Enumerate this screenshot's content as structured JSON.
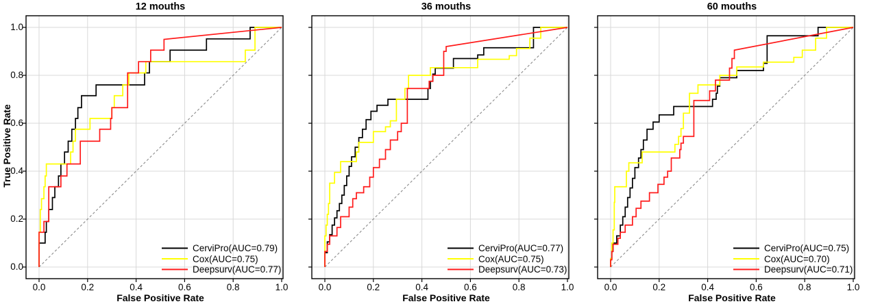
{
  "figure": {
    "background": "#ffffff"
  },
  "colors": {
    "cervipro": "#000000",
    "cox": "#ffff00",
    "deepsurv": "#ff1a1a",
    "diagonal": "#8a8a8a",
    "grid": "#d8d8d8",
    "border": "#000000",
    "tick": "#000000"
  },
  "axis": {
    "x_label": "False Positive Rate",
    "y_label": "True Positive Rate",
    "x_tick_labels": [
      "0.0",
      "0.2",
      "0.4",
      "0.6",
      "0.8",
      "1.0"
    ],
    "y_tick_labels": [
      "1.0",
      "0.8",
      "0.6",
      "0.4",
      "0.2",
      "0.0"
    ]
  },
  "chart_data": [
    {
      "type": "line",
      "subtype": "roc-step-curves",
      "title": "12 mouths",
      "xlabel": "False Positive Rate",
      "ylabel": "True Positive Rate",
      "xlim": [
        0,
        1
      ],
      "ylim": [
        0,
        1
      ],
      "ticks": [
        0,
        0.2,
        0.4,
        0.6,
        0.8,
        1.0
      ],
      "grid": true,
      "diagonal_reference": true,
      "legend_position": "bottom-right",
      "series": [
        {
          "name": "CerviPro",
          "label": "CerviPro(AUC=0.79)",
          "auc": 0.79,
          "color": "#000000",
          "points": [
            [
              0,
              0.1
            ],
            [
              0.025,
              0.145
            ],
            [
              0.03,
              0.19
            ],
            [
              0.04,
              0.24
            ],
            [
              0.055,
              0.29
            ],
            [
              0.065,
              0.335
            ],
            [
              0.08,
              0.38
            ],
            [
              0.09,
              0.43
            ],
            [
              0.105,
              0.48
            ],
            [
              0.12,
              0.525
            ],
            [
              0.135,
              0.575
            ],
            [
              0.15,
              0.62
            ],
            [
              0.16,
              0.665
            ],
            [
              0.175,
              0.715
            ],
            [
              0.235,
              0.76
            ],
            [
              0.435,
              0.81
            ],
            [
              0.455,
              0.857
            ],
            [
              0.54,
              0.905
            ],
            [
              0.69,
              0.952
            ],
            [
              0.87,
              1
            ],
            [
              1,
              1
            ]
          ]
        },
        {
          "name": "Cox",
          "label": "Cox(AUC=0.75)",
          "auc": 0.75,
          "color": "#ffff00",
          "points": [
            [
              0,
              0.145
            ],
            [
              0.005,
              0.24
            ],
            [
              0.01,
              0.285
            ],
            [
              0.02,
              0.335
            ],
            [
              0.025,
              0.38
            ],
            [
              0.03,
              0.43
            ],
            [
              0.13,
              0.48
            ],
            [
              0.14,
              0.525
            ],
            [
              0.15,
              0.575
            ],
            [
              0.21,
              0.62
            ],
            [
              0.3,
              0.665
            ],
            [
              0.31,
              0.715
            ],
            [
              0.345,
              0.76
            ],
            [
              0.37,
              0.81
            ],
            [
              0.44,
              0.857
            ],
            [
              0.85,
              0.905
            ],
            [
              0.89,
              1
            ],
            [
              1,
              1
            ]
          ]
        },
        {
          "name": "Deepsurv",
          "label": "Deepsurv(AUC=0.77)",
          "auc": 0.77,
          "color": "#ff1a1a",
          "points": [
            [
              0,
              0.145
            ],
            [
              0.02,
              0.19
            ],
            [
              0.04,
              0.335
            ],
            [
              0.09,
              0.38
            ],
            [
              0.115,
              0.43
            ],
            [
              0.17,
              0.525
            ],
            [
              0.25,
              0.575
            ],
            [
              0.295,
              0.62
            ],
            [
              0.3,
              0.665
            ],
            [
              0.365,
              0.81
            ],
            [
              0.41,
              0.857
            ],
            [
              0.46,
              0.905
            ],
            [
              0.515,
              0.95
            ]
          ],
          "tail": [
            [
              1,
              1
            ]
          ]
        }
      ]
    },
    {
      "type": "line",
      "subtype": "roc-step-curves",
      "title": "36 mouths",
      "xlabel": "False Positive Rate",
      "ylabel": "True Positive Rate",
      "xlim": [
        0,
        1
      ],
      "ylim": [
        0,
        1
      ],
      "ticks": [
        0,
        0.2,
        0.4,
        0.6,
        0.8,
        1.0
      ],
      "grid": true,
      "diagonal_reference": true,
      "legend_position": "bottom-right",
      "series": [
        {
          "name": "CerviPro",
          "label": "CerviPro(AUC=0.77)",
          "auc": 0.77,
          "color": "#000000",
          "points": [
            [
              0,
              0.06
            ],
            [
              0.01,
              0.105
            ],
            [
              0.02,
              0.135
            ],
            [
              0.03,
              0.175
            ],
            [
              0.04,
              0.205
            ],
            [
              0.05,
              0.235
            ],
            [
              0.06,
              0.265
            ],
            [
              0.07,
              0.3
            ],
            [
              0.08,
              0.34
            ],
            [
              0.09,
              0.38
            ],
            [
              0.1,
              0.42
            ],
            [
              0.11,
              0.46
            ],
            [
              0.125,
              0.5
            ],
            [
              0.14,
              0.54
            ],
            [
              0.155,
              0.575
            ],
            [
              0.17,
              0.615
            ],
            [
              0.19,
              0.65
            ],
            [
              0.215,
              0.675
            ],
            [
              0.26,
              0.7
            ],
            [
              0.425,
              0.745
            ],
            [
              0.435,
              0.775
            ],
            [
              0.445,
              0.805
            ],
            [
              0.455,
              0.83
            ],
            [
              0.53,
              0.87
            ],
            [
              0.63,
              0.885
            ],
            [
              0.655,
              0.915
            ],
            [
              0.86,
              1
            ],
            [
              1,
              1
            ]
          ]
        },
        {
          "name": "Cox",
          "label": "Cox(AUC=0.75)",
          "auc": 0.75,
          "color": "#ffff00",
          "points": [
            [
              0,
              0.13
            ],
            [
              0.005,
              0.175
            ],
            [
              0.01,
              0.22
            ],
            [
              0.015,
              0.265
            ],
            [
              0.02,
              0.35
            ],
            [
              0.04,
              0.395
            ],
            [
              0.065,
              0.44
            ],
            [
              0.13,
              0.48
            ],
            [
              0.14,
              0.52
            ],
            [
              0.2,
              0.565
            ],
            [
              0.25,
              0.585
            ],
            [
              0.27,
              0.61
            ],
            [
              0.295,
              0.7
            ],
            [
              0.33,
              0.745
            ],
            [
              0.345,
              0.8
            ],
            [
              0.435,
              0.832
            ],
            [
              0.63,
              0.867
            ],
            [
              0.76,
              0.882
            ],
            [
              0.79,
              0.912
            ],
            [
              0.845,
              0.955
            ],
            [
              0.89,
              1
            ],
            [
              1,
              1
            ]
          ]
        },
        {
          "name": "Deepsurv",
          "label": "Deepsurv(AUC=0.73)",
          "auc": 0.73,
          "color": "#ff1a1a",
          "points": [
            [
              0,
              0.065
            ],
            [
              0.01,
              0.095
            ],
            [
              0.02,
              0.13
            ],
            [
              0.05,
              0.165
            ],
            [
              0.065,
              0.21
            ],
            [
              0.1,
              0.25
            ],
            [
              0.115,
              0.285
            ],
            [
              0.13,
              0.31
            ],
            [
              0.16,
              0.335
            ],
            [
              0.185,
              0.375
            ],
            [
              0.2,
              0.415
            ],
            [
              0.225,
              0.45
            ],
            [
              0.25,
              0.49
            ],
            [
              0.27,
              0.53
            ],
            [
              0.3,
              0.565
            ],
            [
              0.315,
              0.6
            ],
            [
              0.34,
              0.745
            ],
            [
              0.43,
              0.775
            ],
            [
              0.445,
              0.8
            ],
            [
              0.49,
              0.9
            ],
            [
              0.5,
              0.92
            ]
          ],
          "tail": [
            [
              1,
              1
            ]
          ]
        }
      ]
    },
    {
      "type": "line",
      "subtype": "roc-step-curves",
      "title": "60 mouths",
      "xlabel": "False Positive Rate",
      "ylabel": "True Positive Rate",
      "xlim": [
        0,
        1
      ],
      "ylim": [
        0,
        1
      ],
      "ticks": [
        0,
        0.2,
        0.4,
        0.6,
        0.8,
        1.0
      ],
      "grid": true,
      "diagonal_reference": true,
      "legend_position": "bottom-right",
      "series": [
        {
          "name": "CerviPro",
          "label": "CerviPro(AUC=0.75)",
          "auc": 0.75,
          "color": "#000000",
          "points": [
            [
              0,
              0.035
            ],
            [
              0.005,
              0.065
            ],
            [
              0.01,
              0.1
            ],
            [
              0.025,
              0.13
            ],
            [
              0.04,
              0.175
            ],
            [
              0.05,
              0.21
            ],
            [
              0.06,
              0.25
            ],
            [
              0.07,
              0.29
            ],
            [
              0.08,
              0.33
            ],
            [
              0.09,
              0.37
            ],
            [
              0.1,
              0.415
            ],
            [
              0.115,
              0.455
            ],
            [
              0.125,
              0.49
            ],
            [
              0.135,
              0.53
            ],
            [
              0.15,
              0.575
            ],
            [
              0.175,
              0.605
            ],
            [
              0.2,
              0.635
            ],
            [
              0.26,
              0.67
            ],
            [
              0.42,
              0.7
            ],
            [
              0.435,
              0.725
            ],
            [
              0.44,
              0.755
            ],
            [
              0.45,
              0.79
            ],
            [
              0.52,
              0.82
            ],
            [
              0.63,
              0.85
            ],
            [
              0.645,
              0.965
            ],
            [
              0.855,
              1
            ],
            [
              1,
              1
            ]
          ]
        },
        {
          "name": "Cox",
          "label": "Cox(AUC=0.70)",
          "auc": 0.7,
          "color": "#ffff00",
          "points": [
            [
              0,
              0.035
            ],
            [
              0.005,
              0.1
            ],
            [
              0.01,
              0.155
            ],
            [
              0.015,
              0.27
            ],
            [
              0.017,
              0.335
            ],
            [
              0.065,
              0.4
            ],
            [
              0.075,
              0.435
            ],
            [
              0.13,
              0.48
            ],
            [
              0.265,
              0.512
            ],
            [
              0.28,
              0.545
            ],
            [
              0.29,
              0.578
            ],
            [
              0.3,
              0.642
            ],
            [
              0.325,
              0.725
            ],
            [
              0.36,
              0.76
            ],
            [
              0.45,
              0.8
            ],
            [
              0.52,
              0.835
            ],
            [
              0.63,
              0.855
            ],
            [
              0.755,
              0.875
            ],
            [
              0.79,
              0.905
            ],
            [
              0.845,
              0.955
            ],
            [
              0.89,
              1
            ],
            [
              1,
              1
            ]
          ]
        },
        {
          "name": "Deepsurv",
          "label": "Deepsurv(AUC=0.71)",
          "auc": 0.71,
          "color": "#ff1a1a",
          "points": [
            [
              0,
              0.03
            ],
            [
              0.005,
              0.065
            ],
            [
              0.01,
              0.095
            ],
            [
              0.03,
              0.12
            ],
            [
              0.04,
              0.145
            ],
            [
              0.06,
              0.175
            ],
            [
              0.09,
              0.21
            ],
            [
              0.105,
              0.245
            ],
            [
              0.125,
              0.275
            ],
            [
              0.16,
              0.31
            ],
            [
              0.195,
              0.345
            ],
            [
              0.22,
              0.375
            ],
            [
              0.235,
              0.4
            ],
            [
              0.25,
              0.455
            ],
            [
              0.285,
              0.49
            ],
            [
              0.29,
              0.517
            ],
            [
              0.3,
              0.545
            ],
            [
              0.343,
              0.695
            ],
            [
              0.408,
              0.735
            ],
            [
              0.432,
              0.78
            ],
            [
              0.49,
              0.83
            ],
            [
              0.5,
              0.87
            ],
            [
              0.51,
              0.905
            ]
          ],
          "tail": [
            [
              1,
              1
            ]
          ]
        }
      ]
    }
  ]
}
